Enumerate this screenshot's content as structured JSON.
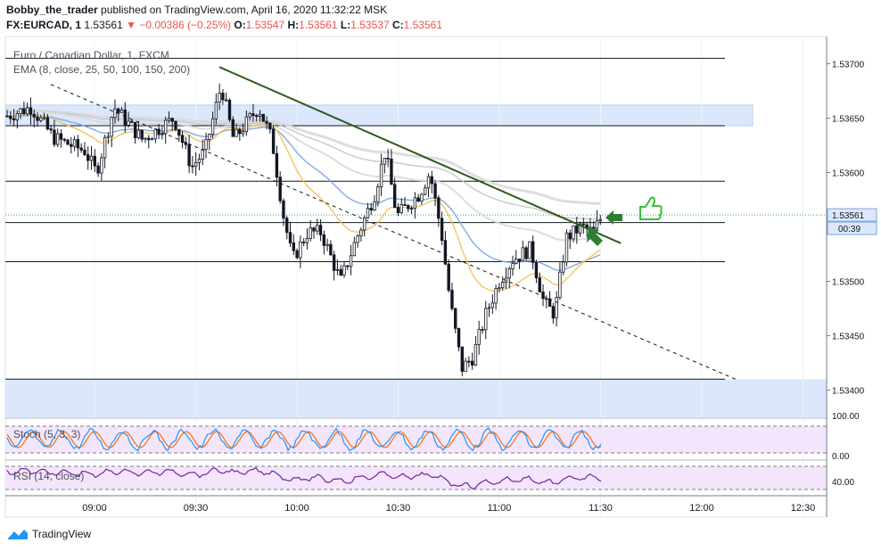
{
  "header": {
    "author": "Bobby_the_trader",
    "published_text": "published on TradingView.com, April 16, 2020 11:32:22 MSK",
    "symbol": "FX:EURCAD, 1",
    "last": "1.53561",
    "change": "▼ −0.00386 (−0.25%)",
    "o_label": "O:",
    "o": "1.53547",
    "h_label": "H:",
    "h": "1.53561",
    "l_label": "L:",
    "l": "1.53537",
    "c_label": "C:",
    "c": "1.53561"
  },
  "brand": {
    "label": "TradingView",
    "icon": "tradingview-logo-icon"
  },
  "colors": {
    "up": "#ffffff",
    "down": "#131722",
    "ema_fast": "#f2c25b",
    "ema_mid": "#7aa6e0",
    "ema_slow": "#d9d9d9",
    "trend_solid": "#2e5a1c",
    "zone": "#dbe7fb",
    "stoch_bg": "#f3e6fc",
    "stoch_k": "#2196f3",
    "stoch_d": "#ff6d00",
    "rsi": "#7b1fa2"
  },
  "chart_data": {
    "type": "candlestick",
    "title": "Euro / Canadian Dollar, 1, FXCM",
    "indicator_label": "EMA (8, close, 25, 50, 100, 150, 200)",
    "y_axis": {
      "ticks": [
        "1.53700",
        "1.53650",
        "1.53600",
        "1.53550",
        "1.53500",
        "1.53450",
        "1.53400"
      ],
      "last_price_label": "1.53561",
      "countdown_label": "00:39",
      "range": [
        1.53375,
        1.53725
      ]
    },
    "x_axis": {
      "ticks": [
        "09:00",
        "09:30",
        "10:00",
        "10:30",
        "11:00",
        "11:30",
        "12:00",
        "12:30"
      ]
    },
    "horizontal_levels": [
      1.53705,
      1.53643,
      1.53592,
      1.53554,
      1.53518,
      1.5341
    ],
    "zones": [
      {
        "from": 1.53643,
        "to": 1.53662
      },
      {
        "from": 1.5336,
        "to": 1.5341
      }
    ],
    "trendlines": [
      {
        "style": "solid",
        "from": [
          "09:37",
          1.53697
        ],
        "to": [
          "11:36",
          1.53535
        ]
      },
      {
        "style": "dashed",
        "from": [
          "08:47",
          1.53681
        ],
        "to": [
          "12:10",
          1.5341
        ]
      }
    ],
    "annotations": [
      "arrow-left",
      "arrow-down-left",
      "thumbs-up"
    ],
    "stoch": {
      "label": "Stoch (5, 3, 3)",
      "ticks": [
        "100.00",
        "0.00"
      ]
    },
    "rsi": {
      "label": "RSI (14, close)",
      "ticks": [
        "40.00"
      ]
    }
  }
}
